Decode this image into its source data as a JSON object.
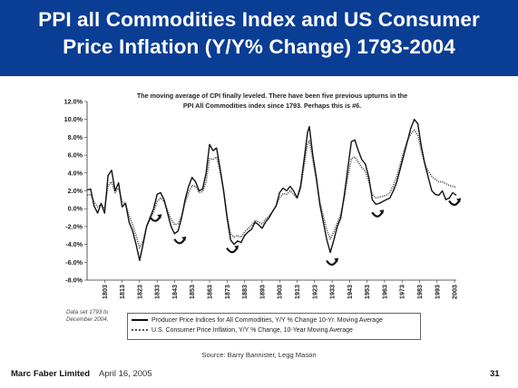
{
  "slide": {
    "title_line1": "PPI all Commodities Index and US Consumer",
    "title_line2": "Price Inflation (Y/Y% Change) 1793-2004",
    "author": "Marc Faber Limited",
    "date": "April 16, 2005",
    "page_number": "31",
    "source": "Source: Barry Bannister, Legg Mason",
    "data_note_line1": "Data set 1793 to",
    "data_note_line2": "December 2004.",
    "colors": {
      "header_bg": "#0a3d94",
      "title_text": "#ffffff",
      "ppi_line": "#111111",
      "cpi_line": "#555555"
    }
  },
  "chart_data": {
    "type": "line",
    "title": "",
    "annotation_line1": "The moving average of CPI finally leveled. There have been five previous upturns in the",
    "annotation_line2": "PPI All Commodities index since 1793. Perhaps this is #6.",
    "xlabel": "",
    "ylabel": "",
    "xlim": [
      1793,
      2004
    ],
    "ylim": [
      -8.0,
      12.0
    ],
    "y_ticks": [
      "12.0%",
      "10.0%",
      "8.0%",
      "6.0%",
      "4.0%",
      "2.0%",
      "0.0%",
      "-2.0%",
      "-4.0%",
      "-6.0%",
      "-8.0%"
    ],
    "x_ticks": [
      "1803",
      "1813",
      "1823",
      "1833",
      "1843",
      "1853",
      "1863",
      "1873",
      "1883",
      "1893",
      "1903",
      "1913",
      "1923",
      "1933",
      "1943",
      "1953",
      "1963",
      "1973",
      "1983",
      "1993",
      "2003"
    ],
    "grid": false,
    "legend": "bottom-left",
    "upturn_markers_years": [
      1832,
      1846,
      1876,
      1933,
      1959,
      2003
    ],
    "upturn_marker_icon": "curved-arrow-icon",
    "series": [
      {
        "name": "Producer Price Indices for All Commodities, Y/Y % Change 10-Yr. Moving Average",
        "style": "solid",
        "x": [
          1793,
          1795,
          1797,
          1799,
          1801,
          1803,
          1805,
          1807,
          1809,
          1811,
          1813,
          1815,
          1817,
          1819,
          1821,
          1823,
          1825,
          1827,
          1829,
          1831,
          1833,
          1835,
          1837,
          1839,
          1841,
          1843,
          1845,
          1847,
          1849,
          1851,
          1853,
          1855,
          1857,
          1859,
          1861,
          1863,
          1865,
          1867,
          1869,
          1871,
          1873,
          1875,
          1877,
          1879,
          1881,
          1883,
          1885,
          1887,
          1889,
          1891,
          1893,
          1895,
          1897,
          1899,
          1901,
          1903,
          1905,
          1907,
          1909,
          1911,
          1913,
          1915,
          1917,
          1919,
          1920,
          1922,
          1924,
          1926,
          1928,
          1930,
          1932,
          1934,
          1936,
          1938,
          1940,
          1942,
          1944,
          1946,
          1948,
          1950,
          1952,
          1954,
          1956,
          1958,
          1960,
          1962,
          1964,
          1966,
          1968,
          1970,
          1972,
          1974,
          1976,
          1978,
          1980,
          1982,
          1984,
          1986,
          1988,
          1990,
          1992,
          1994,
          1996,
          1998,
          2000,
          2002,
          2004
        ],
        "values": [
          2.1,
          2.2,
          0.3,
          -0.5,
          0.6,
          -0.5,
          3.7,
          4.3,
          2.0,
          2.9,
          0.2,
          0.6,
          -1.5,
          -2.5,
          -4.0,
          -5.8,
          -4.0,
          -2.0,
          -1.0,
          0.0,
          1.6,
          1.8,
          1.0,
          -0.5,
          -2.0,
          -2.8,
          -2.5,
          -1.0,
          1.0,
          2.5,
          3.5,
          3.0,
          2.0,
          2.2,
          4.0,
          7.2,
          6.5,
          6.8,
          4.5,
          2.0,
          -1.0,
          -3.5,
          -4.0,
          -3.6,
          -3.8,
          -3.0,
          -2.6,
          -2.3,
          -1.5,
          -1.8,
          -2.2,
          -1.5,
          -1.0,
          -0.3,
          0.3,
          1.8,
          2.3,
          2.0,
          2.5,
          2.0,
          1.2,
          2.5,
          5.5,
          8.5,
          9.2,
          6.0,
          3.5,
          0.5,
          -1.5,
          -3.5,
          -4.9,
          -3.5,
          -2.0,
          -1.0,
          1.5,
          4.5,
          7.5,
          7.7,
          6.5,
          5.5,
          5.0,
          3.5,
          1.0,
          0.5,
          0.6,
          0.8,
          1.0,
          1.2,
          2.0,
          3.0,
          4.5,
          6.0,
          7.5,
          9.0,
          10.0,
          9.5,
          7.0,
          5.0,
          3.5,
          2.0,
          1.6,
          1.5,
          2.0,
          1.0,
          1.2,
          1.8,
          1.5
        ]
      },
      {
        "name": "U.S. Consumer Price Inflation, Y/Y % Change, 10-Year Moving Average",
        "style": "dotted",
        "x": [
          1793,
          1795,
          1797,
          1799,
          1801,
          1803,
          1805,
          1807,
          1809,
          1811,
          1813,
          1815,
          1817,
          1819,
          1821,
          1823,
          1825,
          1827,
          1829,
          1831,
          1833,
          1835,
          1837,
          1839,
          1841,
          1843,
          1845,
          1847,
          1849,
          1851,
          1853,
          1855,
          1857,
          1859,
          1861,
          1863,
          1865,
          1867,
          1869,
          1871,
          1873,
          1875,
          1877,
          1879,
          1881,
          1883,
          1885,
          1887,
          1889,
          1891,
          1893,
          1895,
          1897,
          1899,
          1901,
          1903,
          1905,
          1907,
          1909,
          1911,
          1913,
          1915,
          1917,
          1919,
          1920,
          1922,
          1924,
          1926,
          1928,
          1930,
          1932,
          1934,
          1936,
          1938,
          1940,
          1942,
          1944,
          1946,
          1948,
          1950,
          1952,
          1954,
          1956,
          1958,
          1960,
          1962,
          1964,
          1966,
          1968,
          1970,
          1972,
          1974,
          1976,
          1978,
          1980,
          1982,
          1984,
          1986,
          1988,
          1990,
          1992,
          1994,
          1996,
          1998,
          2000,
          2002,
          2004
        ],
        "values": [
          1.5,
          1.6,
          0.8,
          0.2,
          0.5,
          0.0,
          2.6,
          3.0,
          1.8,
          2.3,
          0.8,
          0.5,
          -0.8,
          -1.8,
          -3.0,
          -4.4,
          -3.6,
          -2.0,
          -1.2,
          -0.4,
          0.8,
          1.2,
          0.8,
          -0.2,
          -1.2,
          -1.8,
          -1.7,
          -0.8,
          0.6,
          1.8,
          2.6,
          2.5,
          1.8,
          1.9,
          3.0,
          5.6,
          5.5,
          5.8,
          4.2,
          2.0,
          -0.8,
          -2.8,
          -3.2,
          -3.0,
          -3.2,
          -2.6,
          -2.2,
          -1.9,
          -1.3,
          -1.5,
          -1.7,
          -1.2,
          -0.8,
          -0.3,
          0.3,
          1.2,
          1.7,
          1.6,
          2.0,
          1.6,
          1.2,
          2.2,
          4.8,
          7.2,
          7.6,
          5.5,
          3.2,
          0.8,
          -0.8,
          -2.4,
          -3.4,
          -2.6,
          -1.6,
          -0.6,
          1.2,
          3.5,
          5.6,
          5.8,
          5.2,
          4.6,
          4.2,
          3.0,
          1.6,
          1.2,
          1.3,
          1.4,
          1.5,
          1.8,
          2.6,
          3.6,
          5.0,
          6.4,
          7.6,
          8.4,
          8.8,
          8.2,
          6.5,
          5.0,
          4.2,
          3.6,
          3.3,
          3.0,
          3.0,
          2.8,
          2.6,
          2.5,
          2.4
        ]
      }
    ]
  }
}
